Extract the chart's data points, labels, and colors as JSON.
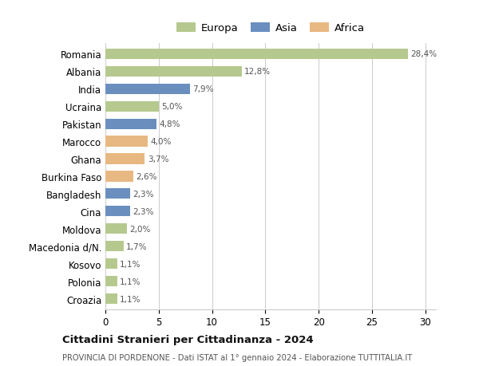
{
  "categories": [
    "Romania",
    "Albania",
    "India",
    "Ucraina",
    "Pakistan",
    "Marocco",
    "Ghana",
    "Burkina Faso",
    "Bangladesh",
    "Cina",
    "Moldova",
    "Macedonia d/N.",
    "Kosovo",
    "Polonia",
    "Croazia"
  ],
  "values": [
    28.4,
    12.8,
    7.9,
    5.0,
    4.8,
    4.0,
    3.7,
    2.6,
    2.3,
    2.3,
    2.0,
    1.7,
    1.1,
    1.1,
    1.1
  ],
  "labels": [
    "28,4%",
    "12,8%",
    "7,9%",
    "5,0%",
    "4,8%",
    "4,0%",
    "3,7%",
    "2,6%",
    "2,3%",
    "2,3%",
    "2,0%",
    "1,7%",
    "1,1%",
    "1,1%",
    "1,1%"
  ],
  "continents": [
    "Europa",
    "Europa",
    "Asia",
    "Europa",
    "Asia",
    "Africa",
    "Africa",
    "Africa",
    "Asia",
    "Asia",
    "Europa",
    "Europa",
    "Europa",
    "Europa",
    "Europa"
  ],
  "colors": {
    "Europa": "#b5c98e",
    "Asia": "#6a8fbf",
    "Africa": "#e8b882"
  },
  "legend_colors": {
    "Europa": "#b5c98e",
    "Asia": "#6a8fbf",
    "Africa": "#e8b882"
  },
  "title1": "Cittadini Stranieri per Cittadinanza - 2024",
  "title2": "PROVINCIA DI PORDENONE - Dati ISTAT al 1° gennaio 2024 - Elaborazione TUTTITALIA.IT",
  "xlim": [
    0,
    31
  ],
  "xticks": [
    0,
    5,
    10,
    15,
    20,
    25,
    30
  ],
  "background_color": "#ffffff",
  "grid_color": "#cccccc"
}
